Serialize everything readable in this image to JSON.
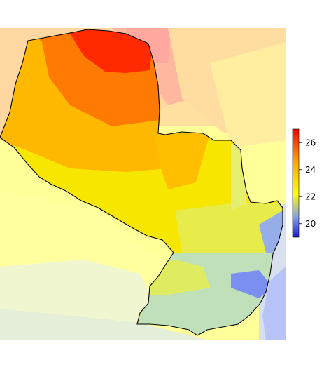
{
  "map": {
    "legend": {
      "ticks": [
        "20",
        "22",
        "24",
        "26"
      ],
      "range": [
        19,
        27
      ],
      "colors": [
        "#1b1bd8",
        "#7f9cf0",
        "#ffff00",
        "#ffa500",
        "#ff0000"
      ]
    },
    "palette": {
      "dark_red": "#ff2a00",
      "orange": "#ff7a00",
      "amber": "#ffb800",
      "yellow": "#f7e600",
      "yellow_green": "#e8ec4a",
      "green": "#bfe0b8",
      "blue": "#7b8ff0",
      "outside_light_yellow": "#ffff99",
      "outside_peach": "#ffd8a0",
      "outside_pink": "#ffb0a0"
    }
  }
}
